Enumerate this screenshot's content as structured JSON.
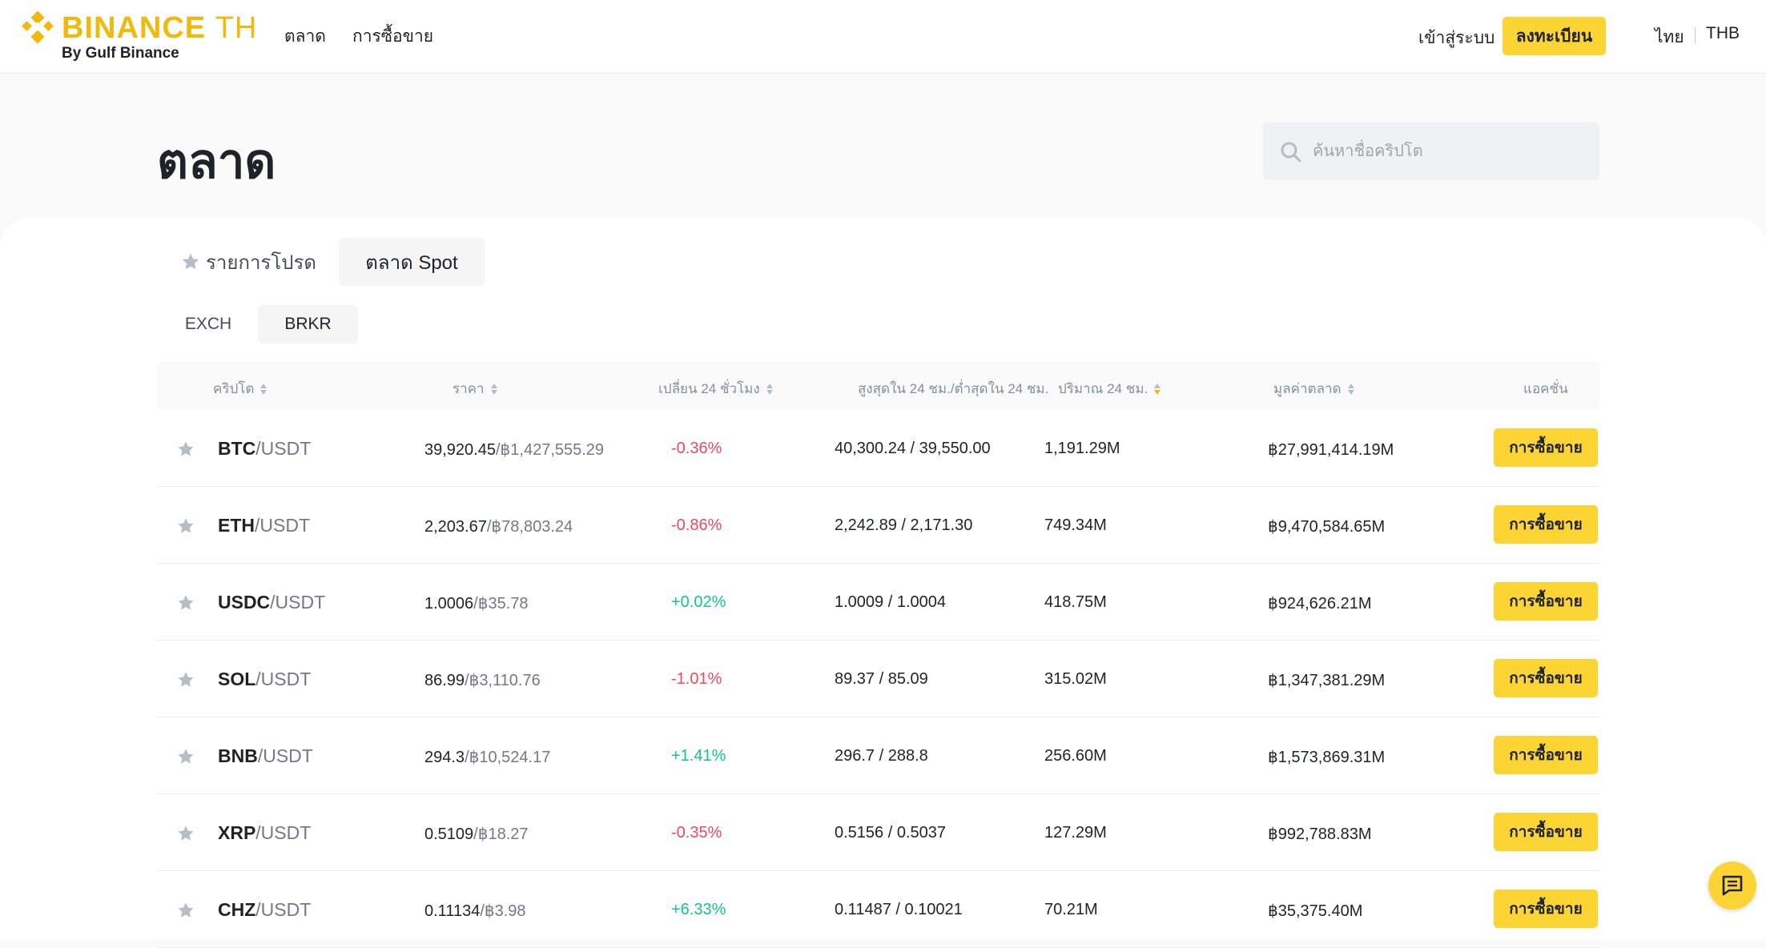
{
  "header": {
    "brand": "BINANCE",
    "brand_suffix": "TH",
    "brand_sub": "By Gulf Binance",
    "nav": [
      "ตลาด",
      "การซื้อขาย"
    ],
    "login": "เข้าสู่ระบบ",
    "register": "ลงทะเบียน",
    "language": "ไทย",
    "currency": "THB"
  },
  "hero": {
    "title": "ตลาด",
    "search_placeholder": "ค้นหาชื่อคริปโต"
  },
  "tabs": {
    "favorites": "รายการโปรด",
    "spot": "ตลาด Spot",
    "active": "spot"
  },
  "subtabs": {
    "exch": "EXCH",
    "brkr": "BRKR",
    "active": "brkr"
  },
  "table": {
    "headers": {
      "crypto": "คริปโต",
      "price": "ราคา",
      "change": "เปลี่ยน 24 ชั่วโมง",
      "hilo": "สูงสุดใน 24 ชม./ต่ำสุดใน 24 ชม.",
      "volume": "ปริมาณ 24 ชม.",
      "mcap": "มูลค่าตลาด",
      "action": "แอคชั่น"
    },
    "sorted_by": "volume",
    "trade_label": "การซื้อขาย",
    "rows": [
      {
        "base": "BTC",
        "quote": "/USDT",
        "price": "39,920.45",
        "fiat": "/฿1,427,555.29",
        "change": "-0.36%",
        "dir": "neg",
        "hilo": "40,300.24 / 39,550.00",
        "volume": "1,191.29M",
        "mcap": "฿27,991,414.19M"
      },
      {
        "base": "ETH",
        "quote": "/USDT",
        "price": "2,203.67",
        "fiat": "/฿78,803.24",
        "change": "-0.86%",
        "dir": "neg",
        "hilo": "2,242.89 / 2,171.30",
        "volume": "749.34M",
        "mcap": "฿9,470,584.65M"
      },
      {
        "base": "USDC",
        "quote": "/USDT",
        "price": "1.0006",
        "fiat": "/฿35.78",
        "change": "+0.02%",
        "dir": "pos",
        "hilo": "1.0009 / 1.0004",
        "volume": "418.75M",
        "mcap": "฿924,626.21M"
      },
      {
        "base": "SOL",
        "quote": "/USDT",
        "price": "86.99",
        "fiat": "/฿3,110.76",
        "change": "-1.01%",
        "dir": "neg",
        "hilo": "89.37 / 85.09",
        "volume": "315.02M",
        "mcap": "฿1,347,381.29M"
      },
      {
        "base": "BNB",
        "quote": "/USDT",
        "price": "294.3",
        "fiat": "/฿10,524.17",
        "change": "+1.41%",
        "dir": "pos",
        "hilo": "296.7 / 288.8",
        "volume": "256.60M",
        "mcap": "฿1,573,869.31M"
      },
      {
        "base": "XRP",
        "quote": "/USDT",
        "price": "0.5109",
        "fiat": "/฿18.27",
        "change": "-0.35%",
        "dir": "neg",
        "hilo": "0.5156 / 0.5037",
        "volume": "127.29M",
        "mcap": "฿992,788.83M"
      },
      {
        "base": "CHZ",
        "quote": "/USDT",
        "price": "0.11134",
        "fiat": "/฿3.98",
        "change": "+6.33%",
        "dir": "pos",
        "hilo": "0.11487 / 0.10021",
        "volume": "70.21M",
        "mcap": "฿35,375.40M"
      }
    ]
  },
  "colors": {
    "brand": "#f0b90b",
    "button": "#fcd535",
    "negative": "#f6465d",
    "positive": "#0ecb81"
  },
  "icons": {
    "logo": "binance-diamond-icon",
    "search": "search-icon",
    "star": "star-icon",
    "chat": "chat-icon"
  }
}
